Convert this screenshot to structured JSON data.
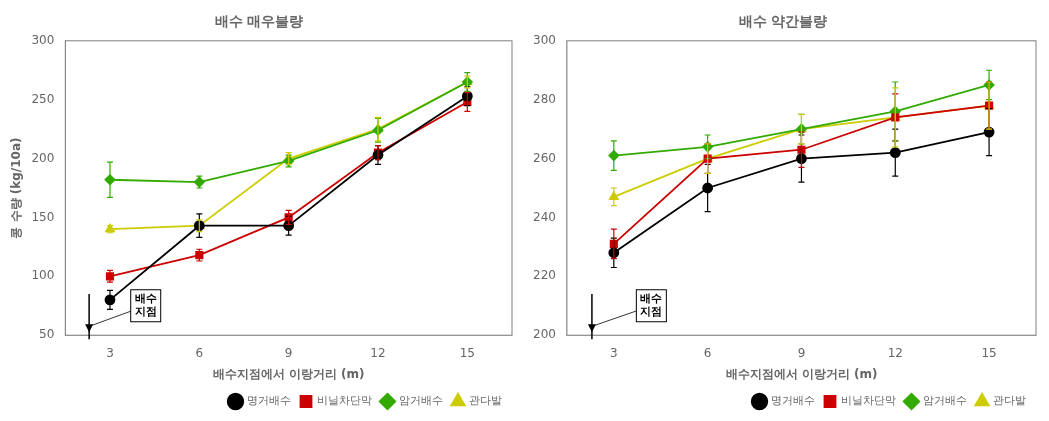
{
  "chart_data": [
    {
      "type": "line",
      "title": "배수 매우불량",
      "xlabel": "배수지점에서 이랑거리 (m)",
      "ylabel": "콩 수량 (kg/10a)",
      "x": [
        3,
        6,
        9,
        12,
        15
      ],
      "xlim": [
        1.5,
        16.5
      ],
      "xticks": [
        3,
        6,
        9,
        12,
        15
      ],
      "ylim": [
        50,
        300
      ],
      "yticks": [
        50,
        100,
        150,
        200,
        250,
        300
      ],
      "grid": false,
      "legend": "lower right",
      "annotation": "배수\n지점",
      "series": [
        {
          "name": "명거배수",
          "color": "#000000",
          "marker": "circle",
          "values": [
            80,
            143,
            143,
            203,
            253
          ],
          "yerr": [
            8,
            10,
            8,
            8,
            8
          ]
        },
        {
          "name": "비닐차단막",
          "color": "#cc0000",
          "marker": "square",
          "values": [
            100,
            118,
            150,
            205,
            248
          ],
          "yerr": [
            5,
            5,
            6,
            6,
            8
          ]
        },
        {
          "name": "암거배수",
          "color": "#33aa00",
          "marker": "diamond",
          "values": [
            182,
            180,
            198,
            224,
            265
          ],
          "yerr": [
            15,
            5,
            5,
            10,
            8
          ]
        },
        {
          "name": "관다발",
          "color": "#cccc00",
          "marker": "triangle",
          "values": [
            140,
            143,
            200,
            225,
            265
          ],
          "yerr": [
            3,
            5,
            5,
            10,
            5
          ]
        }
      ]
    },
    {
      "type": "line",
      "title": "배수 약간불량",
      "xlabel": "배수지점에서 이랑거리 (m)",
      "x": [
        3,
        6,
        9,
        12,
        15
      ],
      "xlim": [
        1.5,
        16.5
      ],
      "xticks": [
        3,
        6,
        9,
        12,
        15
      ],
      "ylim": [
        200,
        300
      ],
      "yticks": [
        200,
        220,
        240,
        260,
        280,
        300
      ],
      "grid": false,
      "legend": "lower right",
      "annotation": "배수\n지점",
      "series": [
        {
          "name": "명거배수",
          "color": "#000000",
          "marker": "circle",
          "values": [
            228,
            250,
            260,
            262,
            269
          ],
          "yerr": [
            5,
            8,
            8,
            8,
            8
          ]
        },
        {
          "name": "비닐차단막",
          "color": "#cc0000",
          "marker": "square",
          "values": [
            231,
            260,
            263,
            274,
            278
          ],
          "yerr": [
            5,
            5,
            6,
            8,
            8
          ]
        },
        {
          "name": "암거배수",
          "color": "#33aa00",
          "marker": "diamond",
          "values": [
            261,
            264,
            270,
            276,
            285
          ],
          "yerr": [
            5,
            4,
            5,
            10,
            5
          ]
        },
        {
          "name": "관다발",
          "color": "#cccc00",
          "marker": "triangle",
          "values": [
            247,
            260,
            270,
            274,
            278
          ],
          "yerr": [
            3,
            5,
            5,
            10,
            8
          ]
        }
      ]
    }
  ]
}
